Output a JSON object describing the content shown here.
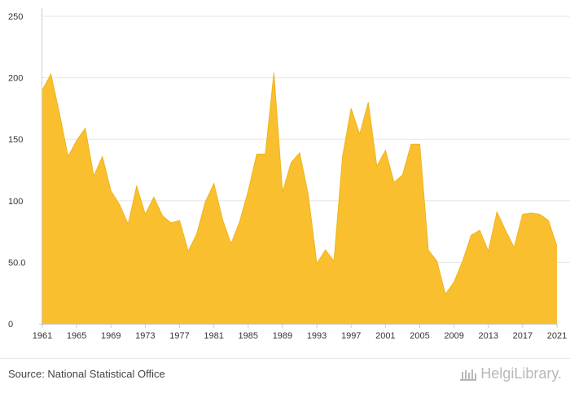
{
  "chart_data": {
    "type": "area",
    "title": "",
    "xlabel": "",
    "ylabel": "",
    "x": [
      1961,
      1962,
      1963,
      1964,
      1965,
      1966,
      1967,
      1968,
      1969,
      1970,
      1971,
      1972,
      1973,
      1974,
      1975,
      1976,
      1977,
      1978,
      1979,
      1980,
      1981,
      1982,
      1983,
      1984,
      1985,
      1986,
      1987,
      1988,
      1989,
      1990,
      1991,
      1992,
      1993,
      1994,
      1995,
      1996,
      1997,
      1998,
      1999,
      2000,
      2001,
      2002,
      2003,
      2004,
      2005,
      2006,
      2007,
      2008,
      2009,
      2010,
      2011,
      2012,
      2013,
      2014,
      2015,
      2016,
      2017,
      2018,
      2019,
      2020,
      2021
    ],
    "values": [
      190,
      203,
      171,
      136,
      149,
      159,
      120,
      136,
      108,
      97,
      81,
      112,
      89,
      103,
      88,
      82,
      84,
      59,
      73,
      99,
      114,
      85,
      65,
      83,
      108,
      138,
      138,
      204,
      107,
      131,
      139,
      105,
      49,
      60,
      51,
      136,
      175,
      154,
      180,
      128,
      141,
      115,
      121,
      146,
      146,
      60,
      51,
      24,
      34,
      51,
      72,
      76,
      59,
      91,
      76,
      62,
      89,
      90,
      89,
      84,
      63
    ],
    "ylim": [
      0,
      250
    ],
    "xlim": [
      1961,
      2021
    ],
    "yticks": [
      0,
      50,
      100,
      150,
      200,
      250
    ],
    "ytick_labels": [
      "0",
      "50.0",
      "100",
      "150",
      "200",
      "250"
    ],
    "xticks": [
      1961,
      1965,
      1969,
      1973,
      1977,
      1981,
      1985,
      1989,
      1993,
      1997,
      2001,
      2005,
      2009,
      2013,
      2017,
      2021
    ],
    "grid": true,
    "legend": "none",
    "colors": {
      "fill": "#f9bf2e",
      "stroke": "#f0b41e",
      "grid": "#e6e6e6",
      "axis": "#cccccc"
    }
  },
  "footer": {
    "source": "Source: National Statistical Office",
    "logo_text": "HelgiLibrary."
  }
}
